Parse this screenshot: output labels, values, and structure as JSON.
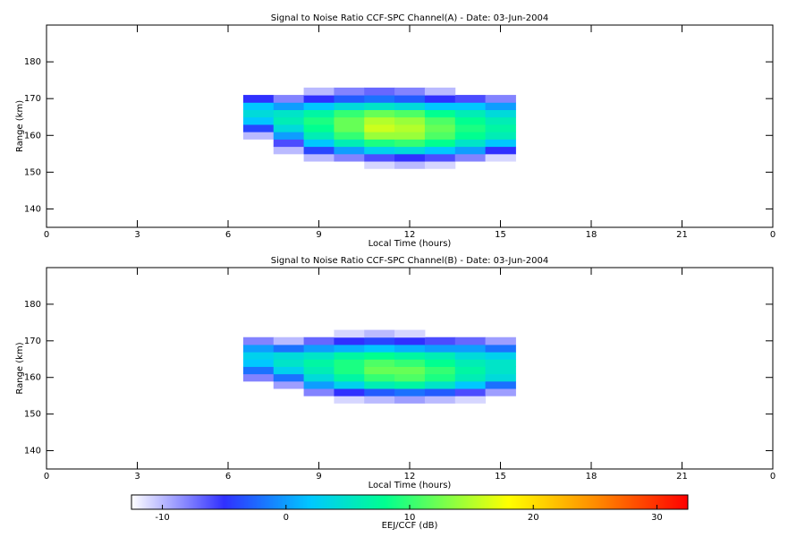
{
  "chart_data": [
    {
      "type": "heatmap",
      "title": "Signal to Noise Ratio CCF-SPC Channel(A) - Date: 03-Jun-2004",
      "x_label": "Local Time (hours)",
      "y_label": "Range (km)",
      "xlim": [
        0,
        24
      ],
      "xticks": [
        0,
        3,
        6,
        9,
        12,
        15,
        18,
        21,
        {
          "value": 24,
          "label": "0"
        }
      ],
      "ylim": [
        135,
        190
      ],
      "yticks": [
        140,
        150,
        160,
        170,
        180
      ],
      "x_bins": [
        6.5,
        7.5,
        8.5,
        9.5,
        10.5,
        11.5,
        12.5,
        13.5,
        14.5,
        15.5
      ],
      "y_bins": [
        151,
        153,
        155,
        157,
        159,
        161,
        163,
        165,
        167,
        169,
        171,
        173
      ],
      "z": [
        [
          null,
          null,
          null,
          null,
          -11,
          -10,
          -11,
          null,
          null
        ],
        [
          null,
          null,
          -10,
          -8,
          -6,
          -5,
          -6,
          -8,
          -11
        ],
        [
          null,
          -10,
          -4,
          0,
          3,
          4,
          2,
          0,
          -5
        ],
        [
          null,
          -6,
          2,
          6,
          9,
          10,
          8,
          5,
          2
        ],
        [
          -10,
          0,
          6,
          10,
          14,
          14,
          11,
          8,
          6
        ],
        [
          -4,
          4,
          8,
          12,
          16,
          15,
          12,
          9,
          7
        ],
        [
          2,
          6,
          9,
          12,
          15,
          14,
          11,
          8,
          6
        ],
        [
          4,
          5,
          7,
          10,
          12,
          11,
          8,
          6,
          4
        ],
        [
          2,
          0,
          2,
          4,
          5,
          4,
          2,
          2,
          0
        ],
        [
          -5,
          -8,
          -5,
          -3,
          -2,
          -3,
          -5,
          -6,
          -8
        ],
        [
          null,
          null,
          -10,
          -8,
          -7,
          -8,
          -10,
          null,
          null
        ]
      ]
    },
    {
      "type": "heatmap",
      "title": "Signal to Noise Ratio CCF-SPC Channel(B) - Date: 03-Jun-2004",
      "x_label": "Local Time (hours)",
      "y_label": "Range (km)",
      "xlim": [
        0,
        24
      ],
      "xticks": [
        0,
        3,
        6,
        9,
        12,
        15,
        18,
        21,
        {
          "value": 24,
          "label": "0"
        }
      ],
      "ylim": [
        135,
        190
      ],
      "yticks": [
        140,
        150,
        160,
        170,
        180
      ],
      "x_bins": [
        6.5,
        7.5,
        8.5,
        9.5,
        10.5,
        11.5,
        12.5,
        13.5,
        14.5,
        15.5
      ],
      "y_bins": [
        151,
        153,
        155,
        157,
        159,
        161,
        163,
        165,
        167,
        169,
        171,
        173
      ],
      "z": [
        [
          null,
          null,
          null,
          null,
          null,
          null,
          null,
          null,
          null
        ],
        [
          null,
          null,
          null,
          -11,
          -10,
          -9,
          -10,
          -11,
          null
        ],
        [
          null,
          null,
          -8,
          -5,
          -3,
          -2,
          -3,
          -6,
          -9
        ],
        [
          null,
          -9,
          0,
          3,
          6,
          7,
          5,
          2,
          -2
        ],
        [
          -8,
          -2,
          4,
          7,
          10,
          11,
          9,
          6,
          4
        ],
        [
          -2,
          3,
          6,
          9,
          12,
          12,
          10,
          7,
          5
        ],
        [
          2,
          5,
          7,
          9,
          11,
          10,
          8,
          6,
          5
        ],
        [
          3,
          4,
          5,
          7,
          8,
          7,
          6,
          4,
          3
        ],
        [
          0,
          -2,
          0,
          1,
          2,
          1,
          0,
          0,
          -2
        ],
        [
          -8,
          -10,
          -7,
          -5,
          -4,
          -5,
          -6,
          -7,
          -9
        ],
        [
          null,
          null,
          null,
          -11,
          -10,
          -11,
          null,
          null,
          null
        ]
      ]
    }
  ],
  "colorbar": {
    "label": "EEJ/CCF (dB)",
    "clim": [
      -12.5,
      32.5
    ],
    "ticks": [
      -10,
      0,
      10,
      20,
      30
    ],
    "colorscale": [
      [
        -12.5,
        "#ffffff"
      ],
      [
        -5,
        "#3030ff"
      ],
      [
        2,
        "#00c8ff"
      ],
      [
        8,
        "#00ff90"
      ],
      [
        18,
        "#ffff00"
      ],
      [
        25,
        "#ff8c00"
      ],
      [
        32.5,
        "#ff0000"
      ]
    ]
  }
}
